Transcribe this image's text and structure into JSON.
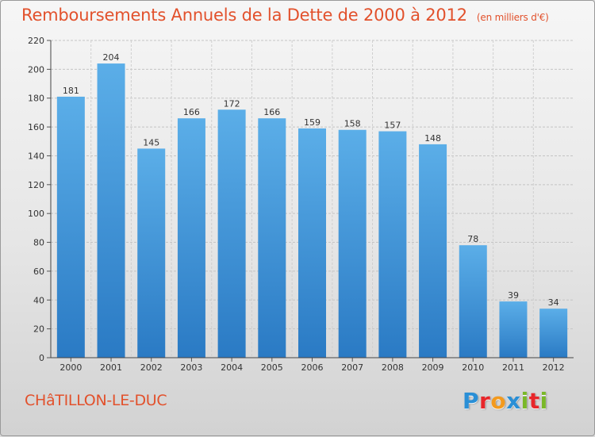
{
  "header": {
    "title": "Remboursements Annuels de la Dette de 2000 à 2012",
    "unit": "(en milliers d'€)"
  },
  "footer": {
    "commune": "CHâTILLON-LE-DUC",
    "logo_letters": [
      "P",
      "r",
      "o",
      "x",
      "i",
      "t",
      "i"
    ],
    "logo_colors": [
      "#2a8fd6",
      "#e8262a",
      "#f39a1e",
      "#2a8fd6",
      "#7ab828",
      "#e8262a",
      "#7ab828"
    ]
  },
  "chart_data": {
    "type": "bar",
    "categories": [
      "2000",
      "2001",
      "2002",
      "2003",
      "2004",
      "2005",
      "2006",
      "2007",
      "2008",
      "2009",
      "2010",
      "2011",
      "2012"
    ],
    "values": [
      181,
      204,
      145,
      166,
      172,
      166,
      159,
      158,
      157,
      148,
      78,
      39,
      34
    ],
    "ylim": [
      0,
      220
    ],
    "yticks": [
      0,
      20,
      40,
      60,
      80,
      100,
      120,
      140,
      160,
      180,
      200,
      220
    ],
    "grid": true,
    "bar_color_top": "#5baee8",
    "bar_color_bottom": "#2a7ac4"
  }
}
